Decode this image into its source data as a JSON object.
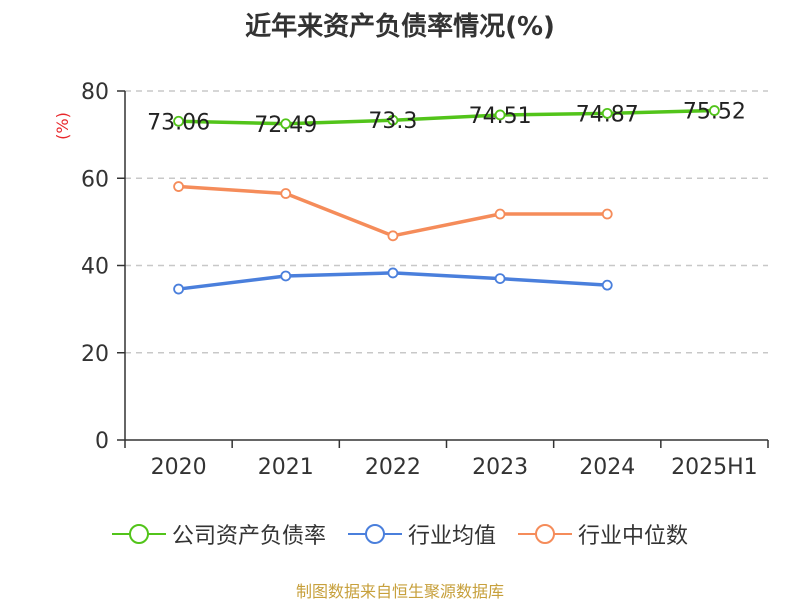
{
  "chart_data": {
    "type": "line",
    "title": "近年来资产负债率情况(%)",
    "ylabel": "(%)",
    "categories": [
      "2020",
      "2021",
      "2022",
      "2023",
      "2024",
      "2025H1"
    ],
    "ylim": [
      0,
      80
    ],
    "yticks": [
      0,
      20,
      40,
      60,
      80
    ],
    "grid": true,
    "legend_position": "bottom",
    "series": [
      {
        "name": "公司资产负债率",
        "color": "#52c41a",
        "values": [
          73.06,
          72.49,
          73.3,
          74.51,
          74.87,
          75.52
        ],
        "labels": [
          "73.06",
          "72.49",
          "73.3",
          "74.51",
          "74.87",
          "75.52"
        ]
      },
      {
        "name": "行业均值",
        "color": "#4a7fdc",
        "values": [
          34.6,
          37.6,
          38.3,
          37.0,
          35.5,
          null
        ]
      },
      {
        "name": "行业中位数",
        "color": "#f58c5a",
        "values": [
          58.1,
          56.5,
          46.8,
          51.8,
          51.8,
          null
        ]
      }
    ]
  },
  "source": "制图数据来自恒生聚源数据库"
}
